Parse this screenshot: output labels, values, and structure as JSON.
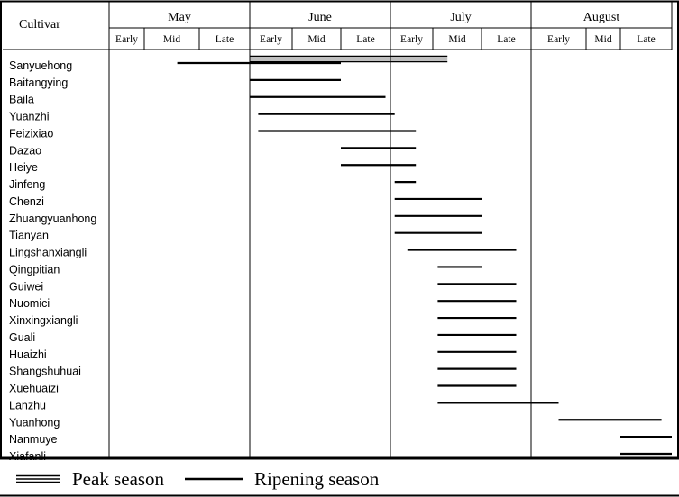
{
  "chart_data": {
    "type": "gantt",
    "header_label": "Cultivar",
    "months": [
      "May",
      "June",
      "July",
      "August"
    ],
    "periods": [
      "Early",
      "Mid",
      "Late"
    ],
    "time_unit_note": "",
    "rows": [
      {
        "cultivar": "Sanyuehong",
        "ripening": [
          [
            1.6,
            5.0
          ]
        ],
        "peak": [
          [
            3.0,
            7.3
          ]
        ]
      },
      {
        "cultivar": "Baitangying",
        "ripening": [
          [
            3.0,
            5.0
          ]
        ],
        "peak": []
      },
      {
        "cultivar": "Baila",
        "ripening": [
          [
            3.0,
            5.9
          ]
        ],
        "peak": []
      },
      {
        "cultivar": "Yuanzhi",
        "ripening": [
          [
            3.2,
            6.1
          ]
        ],
        "peak": []
      },
      {
        "cultivar": "Feizixiao",
        "ripening": [
          [
            3.2,
            6.6
          ]
        ],
        "peak": []
      },
      {
        "cultivar": "Dazao",
        "ripening": [
          [
            5.0,
            6.6
          ]
        ],
        "peak": []
      },
      {
        "cultivar": "Heiye",
        "ripening": [
          [
            5.0,
            6.6
          ]
        ],
        "peak": []
      },
      {
        "cultivar": "Jinfeng",
        "ripening": [
          [
            6.1,
            6.6
          ]
        ],
        "peak": []
      },
      {
        "cultivar": "Chenzi",
        "ripening": [
          [
            6.1,
            8.0
          ]
        ],
        "peak": []
      },
      {
        "cultivar": "Zhuangyuanhong",
        "ripening": [
          [
            6.1,
            8.0
          ]
        ],
        "peak": []
      },
      {
        "cultivar": "Tianyan",
        "ripening": [
          [
            6.1,
            8.0
          ]
        ],
        "peak": []
      },
      {
        "cultivar": "Lingshanxiangli",
        "ripening": [
          [
            6.4,
            8.7
          ]
        ],
        "peak": []
      },
      {
        "cultivar": "Qingpitian",
        "ripening": [
          [
            7.1,
            8.0
          ]
        ],
        "peak": []
      },
      {
        "cultivar": "Guiwei",
        "ripening": [
          [
            7.1,
            8.7
          ]
        ],
        "peak": []
      },
      {
        "cultivar": "Nuomici",
        "ripening": [
          [
            7.1,
            8.7
          ]
        ],
        "peak": []
      },
      {
        "cultivar": "Xinxingxiangli",
        "ripening": [
          [
            7.1,
            8.7
          ]
        ],
        "peak": []
      },
      {
        "cultivar": "Guali",
        "ripening": [
          [
            7.1,
            8.7
          ]
        ],
        "peak": []
      },
      {
        "cultivar": "Huaizhi",
        "ripening": [
          [
            7.1,
            8.7
          ]
        ],
        "peak": []
      },
      {
        "cultivar": "Shangshuhuai",
        "ripening": [
          [
            7.1,
            8.7
          ]
        ],
        "peak": []
      },
      {
        "cultivar": "Xuehuaizi",
        "ripening": [
          [
            7.1,
            8.7
          ]
        ],
        "peak": []
      },
      {
        "cultivar": "Lanzhu",
        "ripening": [
          [
            7.1,
            9.5
          ]
        ],
        "peak": []
      },
      {
        "cultivar": "Yuanhong",
        "ripening": [
          [
            9.5,
            11.8
          ]
        ],
        "peak": []
      },
      {
        "cultivar": "Nanmuye",
        "ripening": [
          [
            11.0,
            12.0
          ]
        ],
        "peak": []
      },
      {
        "cultivar": "Xiafanli",
        "ripening": [
          [
            11.0,
            12.0
          ]
        ],
        "peak": []
      }
    ],
    "legend": {
      "peak": "Peak season",
      "ripening": "Ripening season"
    }
  }
}
